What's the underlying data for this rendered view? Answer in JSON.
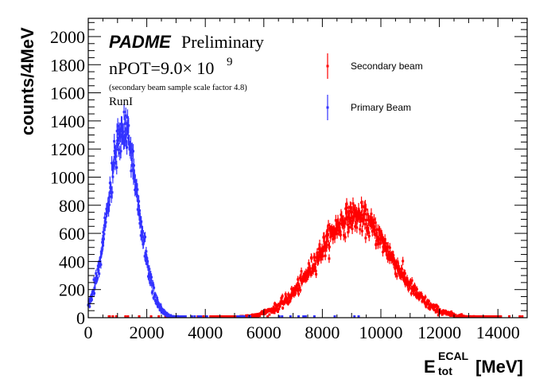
{
  "chart_data": {
    "type": "scatter",
    "title": "",
    "xlabel": "E",
    "xlabel_sup": "ECAL",
    "xlabel_sub": "tot",
    "xlabel_unit": "[MeV]",
    "ylabel": "counts/4MeV",
    "xlim": [
      0,
      15000
    ],
    "ylim": [
      0,
      2130
    ],
    "x_ticks": [
      0,
      2000,
      4000,
      6000,
      8000,
      10000,
      12000,
      14000
    ],
    "x_tick_labels": [
      "0",
      "2000",
      "4000",
      "6000",
      "8000",
      "10000",
      "12000",
      "14000"
    ],
    "y_ticks": [
      0,
      200,
      400,
      600,
      800,
      1000,
      1200,
      1400,
      1600,
      1800,
      2000
    ],
    "y_tick_labels": [
      "0",
      "200",
      "400",
      "600",
      "800",
      "1000",
      "1200",
      "1400",
      "1600",
      "1800",
      "2000"
    ],
    "bin_width": 4,
    "grid": false,
    "legend_position": "top-right",
    "series": [
      {
        "name": "Secondary beam",
        "color": "#ff0000",
        "shape": "gaussian-peak",
        "peak_x": 9100,
        "peak_y": 720,
        "sigma_x": 1250,
        "x_range": [
          0,
          15000
        ]
      },
      {
        "name": "Primary Beam",
        "color": "#3333ff",
        "shape": "gaussian-peak",
        "peak_x": 1200,
        "peak_y": 1320,
        "sigma_x": 520,
        "x_range": [
          0,
          9300
        ]
      }
    ],
    "annotations": {
      "experiment": "PADME",
      "status": "Preliminary",
      "npot_prefix": "nPOT=9.0× 10",
      "npot_exponent": "9",
      "scale_note": "(secondary beam sample scale factor 4.8)",
      "run": "RunI"
    }
  }
}
